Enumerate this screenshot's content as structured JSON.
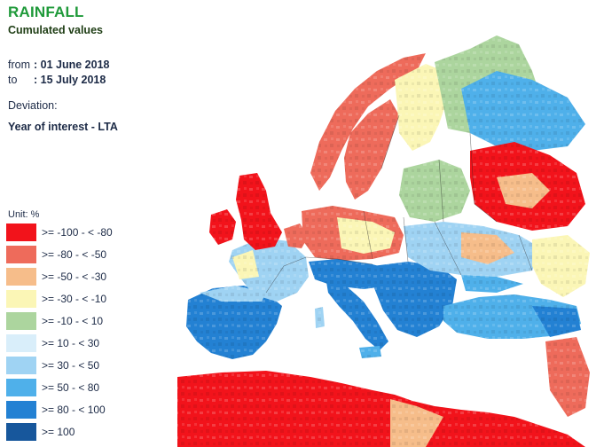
{
  "title": "RAINFALL",
  "subtitle": "Cumulated values",
  "from_label": "from",
  "from_value": ": 01 June 2018",
  "to_label": "to",
  "to_value": ": 15 July 2018",
  "deviation_label": "Deviation:",
  "deviation_value": "Year of interest - LTA",
  "unit_label": "Unit:  %",
  "colors": {
    "title": "#1f9a3a",
    "subtitle": "#1e3d14",
    "sea": "#ffffff",
    "border": "#111111"
  },
  "legend": [
    {
      "label": ">= -100 - < -80",
      "color": "#f2131b"
    },
    {
      "label": ">= -80 - < -50",
      "color": "#ee6b5b"
    },
    {
      "label": ">= -50 - < -30",
      "color": "#f6bd8a"
    },
    {
      "label": ">= -30 - < -10",
      "color": "#fbf6b6"
    },
    {
      "label": ">= -10 - < 10",
      "color": "#acd59e"
    },
    {
      "label": ">= 10 - < 30",
      "color": "#d9eefa"
    },
    {
      "label": ">= 30 - < 50",
      "color": "#9fd3f3"
    },
    {
      "label": ">= 50 - < 80",
      "color": "#4fb0ea"
    },
    {
      "label": ">= 80 - < 100",
      "color": "#2381d3"
    },
    {
      "label": ">= 100",
      "color": "#17579c"
    }
  ]
}
